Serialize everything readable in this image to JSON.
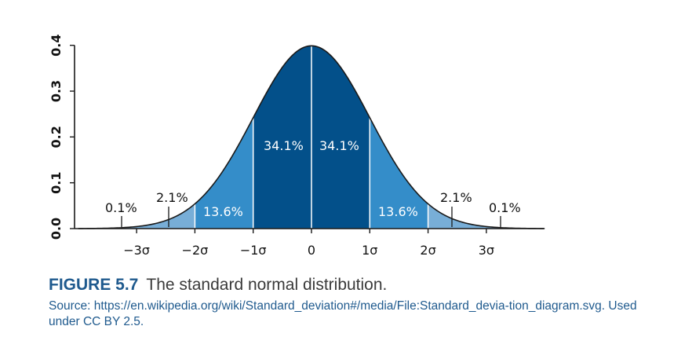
{
  "chart_data": {
    "type": "area",
    "title": "",
    "xlabel": "",
    "ylabel": "",
    "x_ticks": [
      "−3σ",
      "−2σ",
      "−1σ",
      "0",
      "1σ",
      "2σ",
      "3σ"
    ],
    "y_ticks": [
      "0.0",
      "0.1",
      "0.2",
      "0.3",
      "0.4"
    ],
    "xlim": [
      -4,
      4
    ],
    "ylim": [
      0,
      0.4
    ],
    "grid": false,
    "curve": "standard normal density",
    "regions": [
      {
        "from": -3,
        "to": -2,
        "percent_label": "2.1%",
        "color": "#78aed7"
      },
      {
        "from": -2,
        "to": -1,
        "percent_label": "13.6%",
        "color": "#348dc9"
      },
      {
        "from": -1,
        "to": 0,
        "percent_label": "34.1%",
        "color": "#03508a"
      },
      {
        "from": 0,
        "to": 1,
        "percent_label": "34.1%",
        "color": "#03508a"
      },
      {
        "from": 1,
        "to": 2,
        "percent_label": "13.6%",
        "color": "#348dc9"
      },
      {
        "from": 2,
        "to": 3,
        "percent_label": "2.1%",
        "color": "#78aed7"
      }
    ],
    "tails": [
      {
        "side": "left",
        "percent_label": "0.1%",
        "color": "#78aed7"
      },
      {
        "side": "right",
        "percent_label": "0.1%",
        "color": "#78aed7"
      }
    ]
  },
  "caption": {
    "figure_label": "FIGURE 5.7",
    "title": "The standard normal distribution.",
    "source": "Source: https://en.wikipedia.org/wiki/Standard_deviation#/media/File:Standard_devia-tion_diagram.svg. Used under CC BY 2.5."
  }
}
